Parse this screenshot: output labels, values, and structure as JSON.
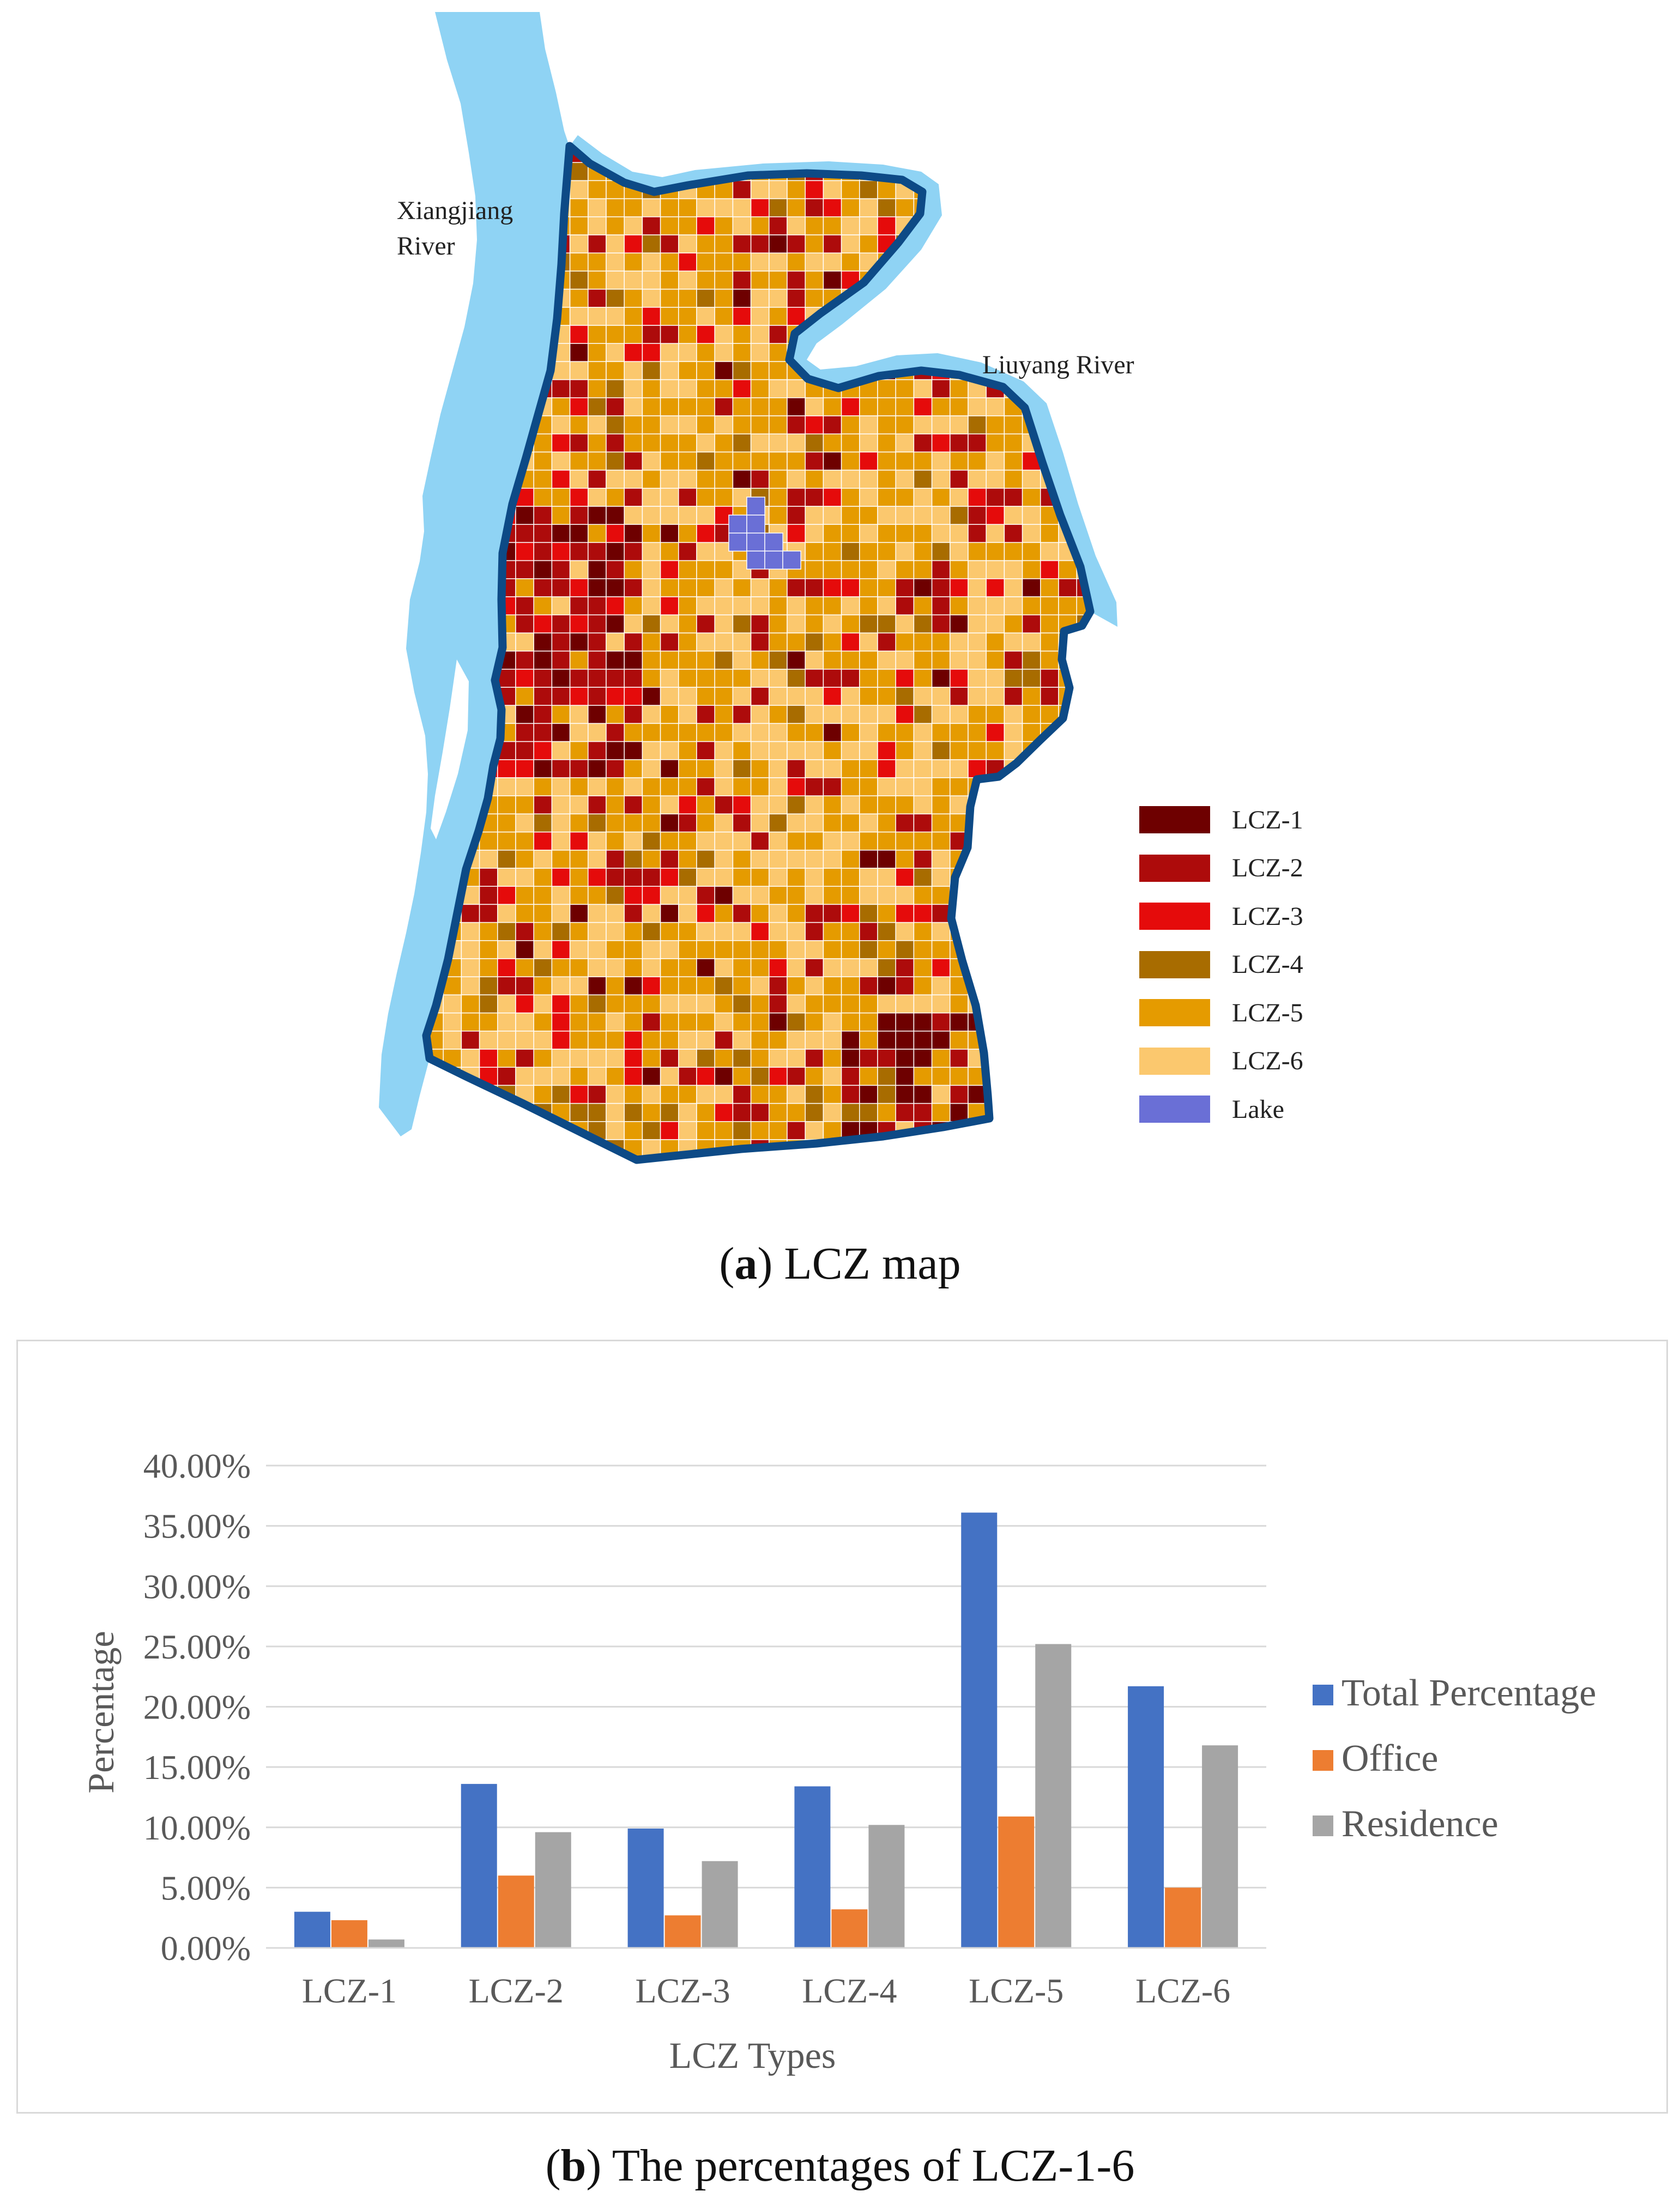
{
  "map": {
    "labels": {
      "river_1": "Xiangjiang River",
      "river_1_line1": "Xiangjiang",
      "river_1_line2": "River",
      "river_2": "Liuyang River"
    },
    "colors": {
      "river": "#8fd3f4",
      "boundary": "#0d4a86",
      "lake": "#6a6fd6"
    },
    "legend": [
      {
        "label": "LCZ-1",
        "color": "#6e0000"
      },
      {
        "label": "LCZ-2",
        "color": "#ad0b0b"
      },
      {
        "label": "LCZ-3",
        "color": "#e50b0b"
      },
      {
        "label": "LCZ-4",
        "color": "#a86c00"
      },
      {
        "label": "LCZ-5",
        "color": "#e59b00"
      },
      {
        "label": "LCZ-6",
        "color": "#fbc86e"
      },
      {
        "label": "Lake",
        "color": "#6a6fd6"
      }
    ],
    "caption_letter": "a",
    "caption_text": " LCZ map"
  },
  "chart_data": {
    "type": "bar",
    "categories": [
      "LCZ-1",
      "LCZ-2",
      "LCZ-3",
      "LCZ-4",
      "LCZ-5",
      "LCZ-6"
    ],
    "series": [
      {
        "name": "Total Percentage",
        "color": "#4472c4",
        "values": [
          3.0,
          13.6,
          9.9,
          13.4,
          36.1,
          21.7
        ]
      },
      {
        "name": "Office",
        "color": "#ed7d31",
        "values": [
          2.3,
          6.0,
          2.7,
          3.2,
          10.9,
          5.0
        ]
      },
      {
        "name": "Residence",
        "color": "#a5a5a5",
        "values": [
          0.7,
          9.6,
          7.2,
          10.2,
          25.2,
          16.8
        ]
      }
    ],
    "yticks": [
      "0.00%",
      "5.00%",
      "10.00%",
      "15.00%",
      "20.00%",
      "25.00%",
      "30.00%",
      "35.00%",
      "40.00%"
    ],
    "ylim": [
      0,
      40
    ],
    "xlabel": "LCZ Types",
    "ylabel": "Percentage",
    "legend_position": "right",
    "grid": true
  },
  "chart_caption": {
    "letter": "b",
    "text": " The percentages of LCZ-1-6"
  }
}
